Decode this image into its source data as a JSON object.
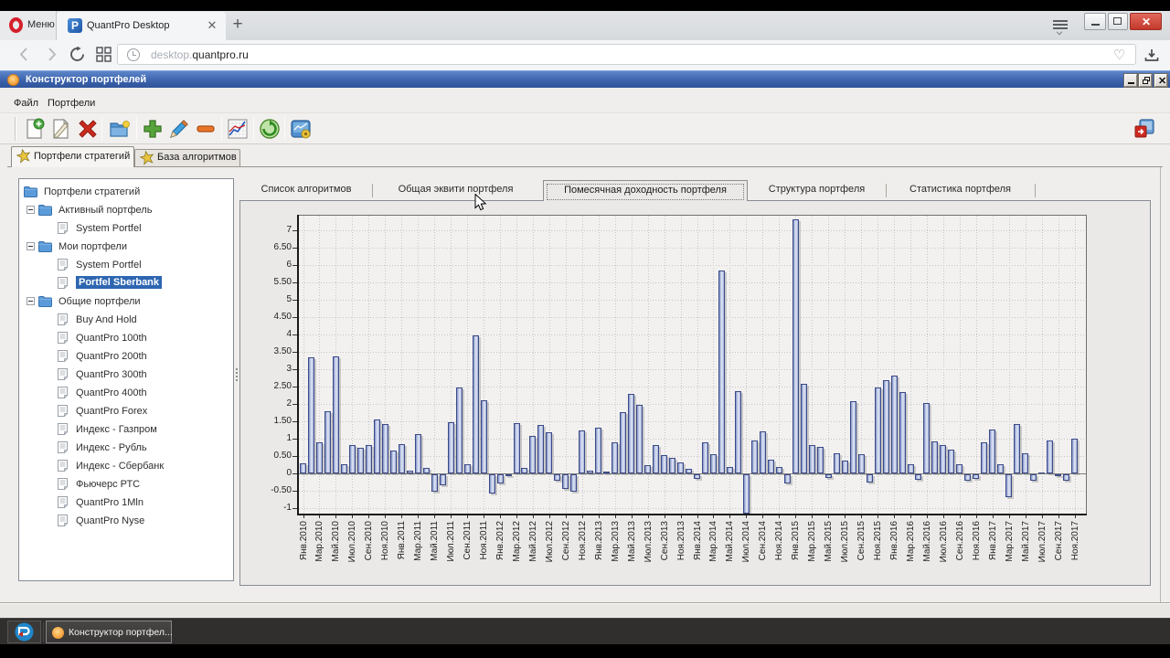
{
  "browser": {
    "menu_button_label": "Меню",
    "tab_title": "QuantPro Desktop",
    "url_prefix": "desktop.",
    "url_domain": "quantpro.ru"
  },
  "app": {
    "title": "Конструктор портфелей",
    "menu_items": [
      "Файл",
      "Портфели"
    ],
    "main_tabs": [
      {
        "label": "Портфели стратегий",
        "active": true
      },
      {
        "label": "База алгоритмов",
        "active": false
      }
    ],
    "toolbar_icons": [
      "new-portfolio",
      "edit-portfolio",
      "delete-portfolio",
      "open-folder",
      "add-algorithm",
      "edit-algorithm",
      "remove-algorithm",
      "equity-chart",
      "refresh",
      "chart-settings",
      "exit-app"
    ],
    "tree": [
      {
        "label": "Портфели стратегий",
        "level": 0,
        "icon": "folder",
        "expander": false,
        "selected": false
      },
      {
        "label": "Активный портфель",
        "level": 1,
        "icon": "folder",
        "expander": true,
        "selected": false
      },
      {
        "label": "System Portfel",
        "level": 2,
        "icon": "page",
        "expander": false,
        "selected": false
      },
      {
        "label": "Мои портфели",
        "level": 1,
        "icon": "folder",
        "expander": true,
        "selected": false
      },
      {
        "label": "System Portfel",
        "level": 2,
        "icon": "page",
        "expander": false,
        "selected": false
      },
      {
        "label": "Portfel Sberbank",
        "level": 2,
        "icon": "page",
        "expander": false,
        "selected": true
      },
      {
        "label": "Общие портфели",
        "level": 1,
        "icon": "folder",
        "expander": true,
        "selected": false
      },
      {
        "label": "Buy And Hold",
        "level": 2,
        "icon": "page",
        "expander": false,
        "selected": false
      },
      {
        "label": "QuantPro 100th",
        "level": 2,
        "icon": "page",
        "expander": false,
        "selected": false
      },
      {
        "label": "QuantPro 200th",
        "level": 2,
        "icon": "page",
        "expander": false,
        "selected": false
      },
      {
        "label": "QuantPro 300th",
        "level": 2,
        "icon": "page",
        "expander": false,
        "selected": false
      },
      {
        "label": "QuantPro 400th",
        "level": 2,
        "icon": "page",
        "expander": false,
        "selected": false
      },
      {
        "label": "QuantPro Forex",
        "level": 2,
        "icon": "page",
        "expander": false,
        "selected": false
      },
      {
        "label": "Индекс - Газпром",
        "level": 2,
        "icon": "page",
        "expander": false,
        "selected": false
      },
      {
        "label": "Индекс - Рубль",
        "level": 2,
        "icon": "page",
        "expander": false,
        "selected": false
      },
      {
        "label": "Индекс - Сбербанк",
        "level": 2,
        "icon": "page",
        "expander": false,
        "selected": false
      },
      {
        "label": "Фьючерс РТС",
        "level": 2,
        "icon": "page",
        "expander": false,
        "selected": false
      },
      {
        "label": "QuantPro 1Mln",
        "level": 2,
        "icon": "page",
        "expander": false,
        "selected": false
      },
      {
        "label": "QuantPro Nyse",
        "level": 2,
        "icon": "page",
        "expander": false,
        "selected": false
      }
    ],
    "subtabs": [
      {
        "label": "Список алгоритмов",
        "active": false
      },
      {
        "label": "Общая эквити портфеля",
        "active": false
      },
      {
        "label": "Помесячная доходность портфеля",
        "active": true
      },
      {
        "label": "Структура портфеля",
        "active": false
      },
      {
        "label": "Статистика портфеля",
        "active": false
      }
    ]
  },
  "chart_data": {
    "type": "bar",
    "title": "",
    "xlabel": "",
    "ylabel": "",
    "ylim": [
      -1.17,
      7.44
    ],
    "grid": true,
    "y_tick_labels": [
      "7",
      "6.50",
      "6",
      "5.50",
      "5",
      "4.50",
      "4",
      "3.50",
      "3",
      "2.50",
      "2",
      "1.50",
      "1",
      "0.50",
      "0",
      "-0.50",
      "-1"
    ],
    "y_ticks": [
      7,
      6.5,
      6,
      5.5,
      5,
      4.5,
      4,
      3.5,
      3,
      2.5,
      2,
      1.5,
      1,
      0.5,
      0,
      -0.5,
      -1
    ],
    "x_tick_labels": [
      "Янв.2010",
      "Мар.2010",
      "Май.2010",
      "Июл.2010",
      "Сен.2010",
      "Ноя.2010",
      "Янв.2011",
      "Мар.2011",
      "Май.2011",
      "Июл.2011",
      "Сен.2011",
      "Ноя.2011",
      "Янв.2012",
      "Мар.2012",
      "Май.2012",
      "Июл.2012",
      "Сен.2012",
      "Ноя.2012",
      "Янв.2013",
      "Мар.2013",
      "Май.2013",
      "Июл.2013",
      "Сен.2013",
      "Ноя.2013",
      "Янв.2014",
      "Мар.2014",
      "Май.2014",
      "Июл.2014",
      "Сен.2014",
      "Ноя.2014",
      "Янв.2015",
      "Мар.2015",
      "Май.2015",
      "Июл.2015",
      "Сен.2015",
      "Ноя.2015",
      "Янв.2016",
      "Мар.2016",
      "Май.2016",
      "Июл.2016",
      "Сен.2016",
      "Ноя.2016",
      "Янв.2017",
      "Мар.2017",
      "Май.2017",
      "Июл.2017",
      "Сен.2017",
      "Ноя.2017"
    ],
    "categories_note": "monthly portfolio returns, percent, Jan 2010 - Nov 2017",
    "values": [
      0.28,
      3.34,
      0.9,
      1.79,
      3.36,
      0.26,
      0.8,
      0.74,
      0.8,
      1.56,
      1.41,
      0.65,
      0.84,
      0.08,
      1.12,
      0.15,
      -0.51,
      -0.31,
      1.46,
      2.47,
      0.27,
      3.97,
      2.1,
      -0.57,
      -0.27,
      -0.05,
      1.44,
      0.16,
      1.07,
      1.38,
      1.17,
      -0.18,
      -0.43,
      -0.5,
      1.23,
      0.07,
      1.32,
      0.05,
      0.88,
      1.75,
      2.27,
      1.96,
      0.23,
      0.81,
      0.51,
      0.43,
      0.31,
      0.13,
      -0.13,
      0.9,
      0.55,
      5.83,
      0.17,
      2.37,
      -1.15,
      0.94,
      1.21,
      0.4,
      0.19,
      -0.28,
      7.3,
      2.56,
      0.82,
      0.75,
      -0.12,
      0.58,
      0.37,
      2.08,
      0.55,
      -0.24,
      2.48,
      2.69,
      2.81,
      2.33,
      0.27,
      -0.16,
      2.01,
      0.92,
      0.81,
      0.69,
      0.26,
      -0.2,
      -0.13,
      0.89,
      1.25,
      0.26,
      -0.67,
      1.42,
      0.58,
      -0.18,
      0.02,
      0.94,
      -0.07,
      -0.18,
      0.99
    ]
  },
  "taskbar": {
    "app_button_label": "Конструктор портфел..."
  }
}
